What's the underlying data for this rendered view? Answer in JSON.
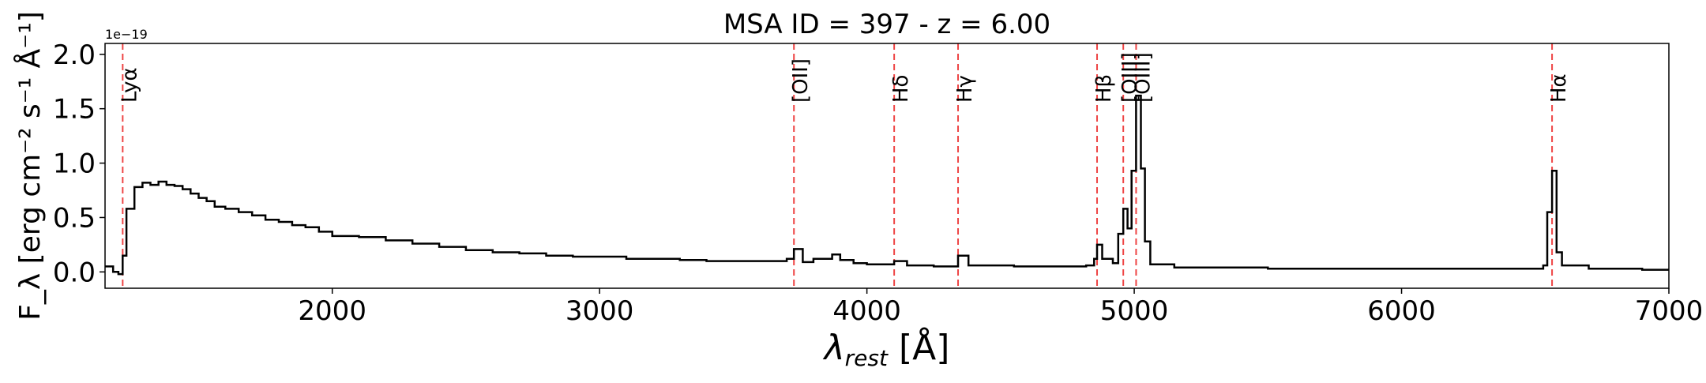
{
  "chart_data": {
    "type": "line",
    "title": "MSA ID = 397 - z = 6.00",
    "xlabel_main": "λ",
    "xlabel_sub": "rest",
    "xlabel_unit": " [Å]",
    "ylabel": "F_λ [erg cm⁻² s⁻¹ Å⁻¹]",
    "y_offset_text": "1e−19",
    "xlim": [
      1150,
      7000
    ],
    "ylim": [
      -0.15,
      2.1
    ],
    "xticks": [
      2000,
      3000,
      4000,
      5000,
      6000,
      7000
    ],
    "xtick_labels": [
      "2000",
      "3000",
      "4000",
      "5000",
      "6000",
      "7000"
    ],
    "yticks": [
      0.0,
      0.5,
      1.0,
      1.5,
      2.0
    ],
    "ytick_labels": [
      "0.0",
      "0.5",
      "1.0",
      "1.5",
      "2.0"
    ],
    "emission_lines": [
      {
        "label": "Lyα",
        "x": 1216
      },
      {
        "label": "[OII]",
        "x": 3727
      },
      {
        "label": "Hδ",
        "x": 4102
      },
      {
        "label": "Hγ",
        "x": 4341
      },
      {
        "label": "Hβ",
        "x": 4861
      },
      {
        "label": "[OIII]",
        "x": 4959
      },
      {
        "label": "[OIII]",
        "x": 5007
      },
      {
        "label": "Hα",
        "x": 6563
      }
    ],
    "series": [
      {
        "x": [
          1150,
          1180,
          1200,
          1216,
          1230,
          1260,
          1290,
          1320,
          1350,
          1380,
          1410,
          1440,
          1470,
          1500,
          1530,
          1560,
          1600,
          1650,
          1700,
          1750,
          1800,
          1850,
          1900,
          1950,
          2000,
          2100,
          2200,
          2300,
          2400,
          2500,
          2600,
          2700,
          2800,
          2900,
          3000,
          3100,
          3200,
          3300,
          3400,
          3500,
          3600,
          3700,
          3727,
          3760,
          3800,
          3870,
          3900,
          3950,
          4000,
          4102,
          4150,
          4250,
          4341,
          4380,
          4450,
          4550,
          4650,
          4750,
          4820,
          4850,
          4861,
          4880,
          4920,
          4940,
          4959,
          4975,
          4990,
          5007,
          5025,
          5040,
          5060,
          5150,
          5300,
          5500,
          5700,
          5900,
          6100,
          6300,
          6450,
          6530,
          6545,
          6563,
          6580,
          6600,
          6700,
          6800,
          6900,
          7000
        ],
        "y": [
          0.05,
          0.0,
          -0.02,
          0.15,
          0.58,
          0.78,
          0.82,
          0.8,
          0.83,
          0.8,
          0.79,
          0.76,
          0.72,
          0.68,
          0.65,
          0.6,
          0.58,
          0.55,
          0.52,
          0.48,
          0.46,
          0.43,
          0.41,
          0.37,
          0.33,
          0.32,
          0.29,
          0.26,
          0.23,
          0.2,
          0.18,
          0.17,
          0.15,
          0.14,
          0.14,
          0.12,
          0.12,
          0.11,
          0.1,
          0.1,
          0.1,
          0.12,
          0.21,
          0.09,
          0.12,
          0.16,
          0.11,
          0.08,
          0.07,
          0.1,
          0.06,
          0.05,
          0.15,
          0.06,
          0.06,
          0.05,
          0.05,
          0.05,
          0.06,
          0.12,
          0.25,
          0.12,
          0.08,
          0.35,
          0.58,
          0.4,
          0.93,
          1.62,
          0.95,
          0.28,
          0.07,
          0.04,
          0.04,
          0.03,
          0.03,
          0.03,
          0.03,
          0.03,
          0.03,
          0.06,
          0.55,
          0.93,
          0.18,
          0.06,
          0.03,
          0.03,
          0.02,
          0.03
        ]
      }
    ]
  }
}
